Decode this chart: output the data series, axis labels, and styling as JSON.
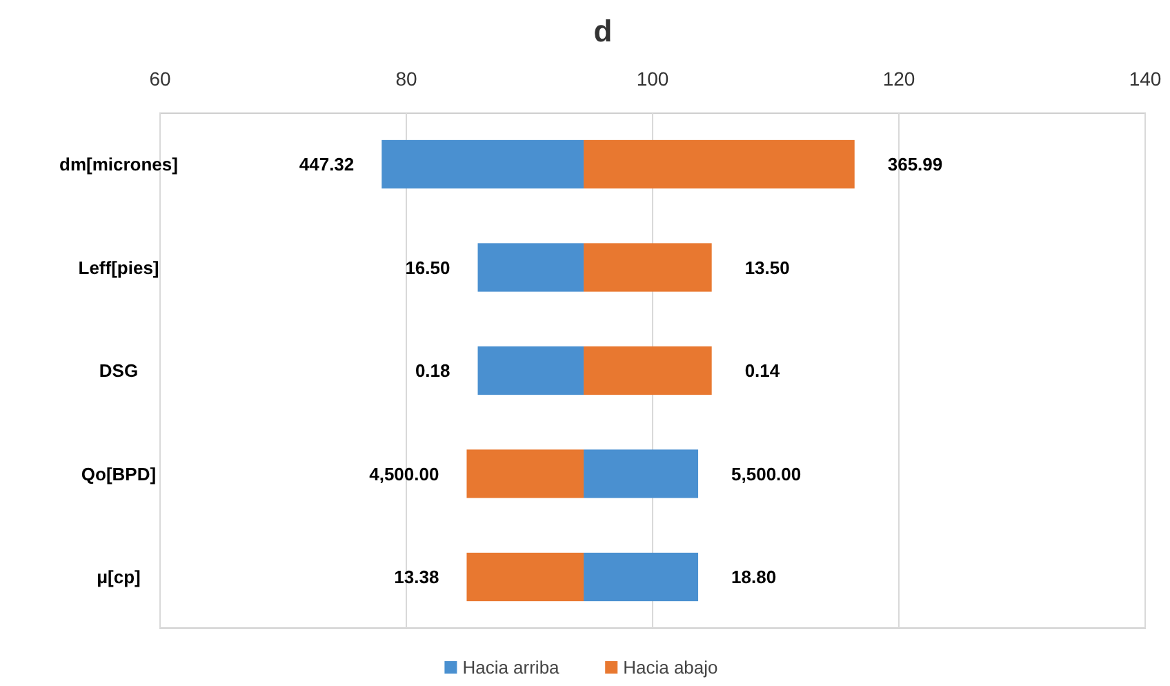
{
  "chart_data": {
    "type": "bar",
    "orientation": "horizontal",
    "title": "d",
    "categories": [
      "dm[micrones]",
      "Leff[pies]",
      "DSG",
      "Qo[BPD]",
      "μ[cp]"
    ],
    "series": [
      {
        "name": "Hacia arriba",
        "color": "#4a90d0",
        "base": [
          78.0,
          85.8,
          85.8,
          94.4,
          94.4
        ],
        "values": [
          16.4,
          8.6,
          8.6,
          9.3,
          9.3
        ]
      },
      {
        "name": "Hacia abajo",
        "color": "#e87830",
        "base": [
          94.4,
          94.4,
          94.4,
          84.9,
          84.9
        ],
        "values": [
          22.0,
          10.4,
          10.4,
          9.5,
          9.5
        ]
      }
    ],
    "annotations": [
      {
        "text": "447.32",
        "x": 78.0,
        "y": "dm[micrones]"
      },
      {
        "text": "365.99",
        "x": 116.4,
        "y": "dm[micrones]"
      },
      {
        "text": "16.50",
        "x": 85.8,
        "y": "Leff[pies]"
      },
      {
        "text": "13.50",
        "x": 104.8,
        "y": "Leff[pies]"
      },
      {
        "text": "0.18",
        "x": 85.8,
        "y": "DSG"
      },
      {
        "text": "0.14",
        "x": 104.8,
        "y": "DSG"
      },
      {
        "text": "4,500.00",
        "x": 84.9,
        "y": "Qo[BPD]"
      },
      {
        "text": "5,500.00",
        "x": 103.7,
        "y": "Qo[BPD]"
      },
      {
        "text": "13.38",
        "x": 84.9,
        "y": "μ[cp]"
      },
      {
        "text": "18.80",
        "x": 103.7,
        "y": "μ[cp]"
      }
    ],
    "xlim": [
      60,
      140
    ],
    "xticks": [
      60,
      80,
      100,
      120,
      140
    ],
    "grid": "x",
    "legend": "bottom"
  }
}
